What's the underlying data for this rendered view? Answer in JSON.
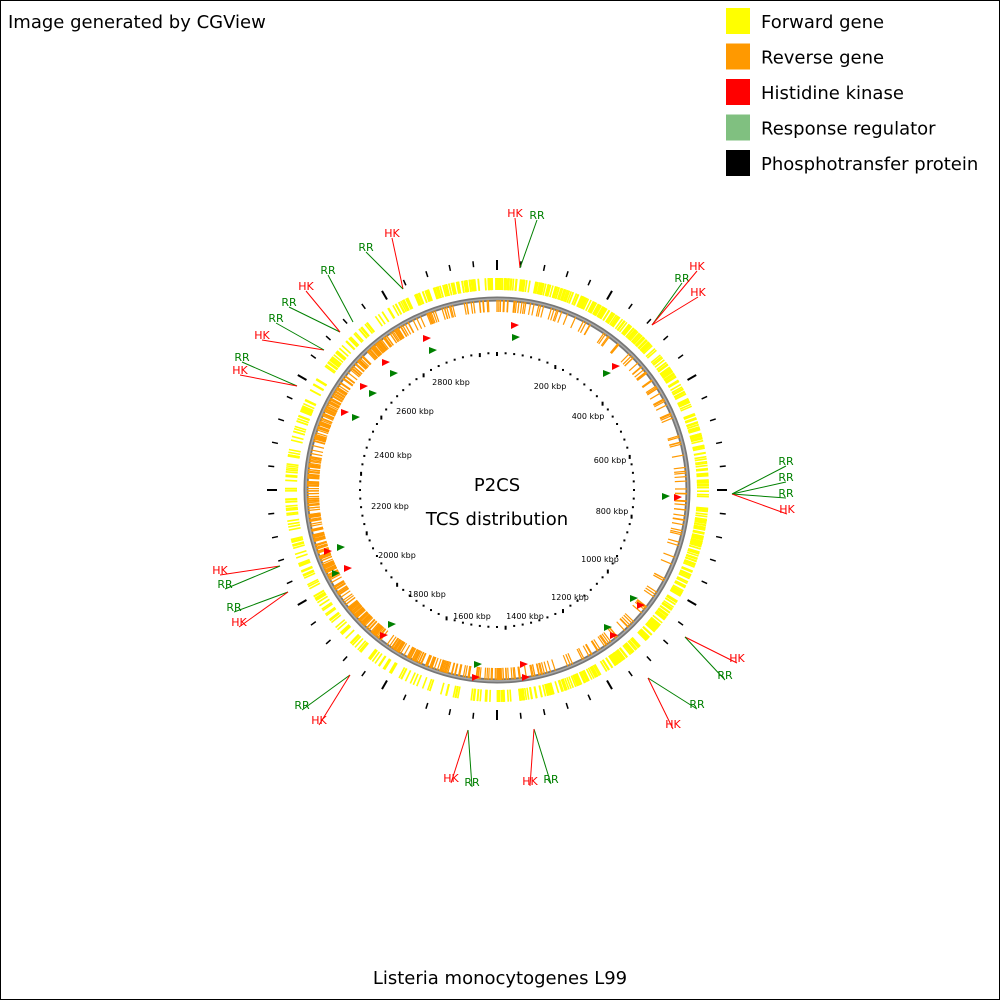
{
  "header": {
    "credit": "Image generated by CGView"
  },
  "legend": [
    {
      "label": "Forward gene",
      "color": "#ffff00"
    },
    {
      "label": "Reverse gene",
      "color": "#ff9900"
    },
    {
      "label": "Histidine kinase",
      "color": "#ff0000"
    },
    {
      "label": "Response regulator",
      "color": "#80c080"
    },
    {
      "label": "Phosphotransfer protein",
      "color": "#000000"
    }
  ],
  "center": {
    "title": "P2CS",
    "subtitle": "TCS distribution"
  },
  "ruler": [
    "200 kbp",
    "400 kbp",
    "600 kbp",
    "800 kbp",
    "1000 kbp",
    "1200 kbp",
    "1400 kbp",
    "1600 kbp",
    "1800 kbp",
    "2000 kbp",
    "2200 kbp",
    "2400 kbp",
    "2600 kbp",
    "2800 kbp"
  ],
  "annotations": [
    "HK",
    "RR",
    "RR",
    "HK",
    "RR",
    "RR",
    "HK",
    "HK",
    "RR",
    "RR",
    "HK",
    "RR",
    "HK",
    "HK",
    "RR",
    "RR",
    "HK",
    "RR",
    "HK",
    "HK",
    "RR",
    "RR",
    "HK",
    "HK",
    "RR",
    "RR",
    "HK",
    "RR",
    "HK",
    "RR",
    "RR",
    "HK"
  ],
  "footer": {
    "organism": "Listeria monocytogenes L99"
  }
}
